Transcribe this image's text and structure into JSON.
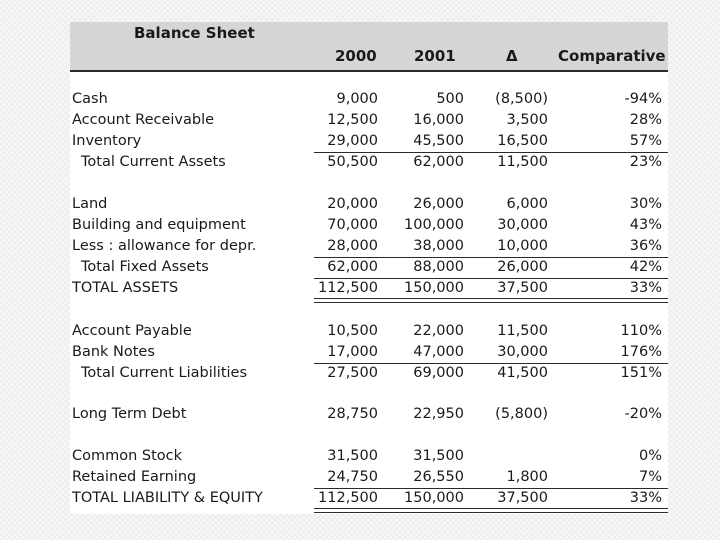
{
  "sheet": {
    "title": "Balance Sheet",
    "columns": {
      "y2000": "2000",
      "y2001": "2001",
      "delta": "Δ",
      "comparative": "Comparative"
    },
    "rows": [
      {
        "label": "Cash",
        "y2000": "9,000",
        "y2001": "500",
        "delta": "(8,500)",
        "comparative": "-94%"
      },
      {
        "label": "Account Receivable",
        "y2000": "12,500",
        "y2001": "16,000",
        "delta": "3,500",
        "comparative": "28%"
      },
      {
        "label": "Inventory",
        "y2000": "29,000",
        "y2001": "45,500",
        "delta": "16,500",
        "comparative": "57%"
      },
      {
        "label": "Total Current Assets",
        "y2000": "50,500",
        "y2001": "62,000",
        "delta": "11,500",
        "comparative": "23%"
      },
      {
        "label": "Land",
        "y2000": "20,000",
        "y2001": "26,000",
        "delta": "6,000",
        "comparative": "30%"
      },
      {
        "label": "Building and equipment",
        "y2000": "70,000",
        "y2001": "100,000",
        "delta": "30,000",
        "comparative": "43%"
      },
      {
        "label": "Less : allowance for depr.",
        "y2000": "28,000",
        "y2001": "38,000",
        "delta": "10,000",
        "comparative": "36%"
      },
      {
        "label": "Total Fixed Assets",
        "y2000": "62,000",
        "y2001": "88,000",
        "delta": "26,000",
        "comparative": "42%"
      },
      {
        "label": "TOTAL ASSETS",
        "y2000": "112,500",
        "y2001": "150,000",
        "delta": "37,500",
        "comparative": "33%"
      },
      {
        "label": "Account Payable",
        "y2000": "10,500",
        "y2001": "22,000",
        "delta": "11,500",
        "comparative": "110%"
      },
      {
        "label": "Bank Notes",
        "y2000": "17,000",
        "y2001": "47,000",
        "delta": "30,000",
        "comparative": "176%"
      },
      {
        "label": "Total Current Liabilities",
        "y2000": "27,500",
        "y2001": "69,000",
        "delta": "41,500",
        "comparative": "151%"
      },
      {
        "label": "Long Term Debt",
        "y2000": "28,750",
        "y2001": "22,950",
        "delta": "(5,800)",
        "comparative": "-20%"
      },
      {
        "label": "Common Stock",
        "y2000": "31,500",
        "y2001": "31,500",
        "delta": "",
        "comparative": "0%"
      },
      {
        "label": "Retained Earning",
        "y2000": "24,750",
        "y2001": "26,550",
        "delta": "1,800",
        "comparative": "7%"
      },
      {
        "label": "TOTAL LIABILITY & EQUITY",
        "y2000": "112,500",
        "y2001": "150,000",
        "delta": "37,500",
        "comparative": "33%"
      }
    ]
  }
}
